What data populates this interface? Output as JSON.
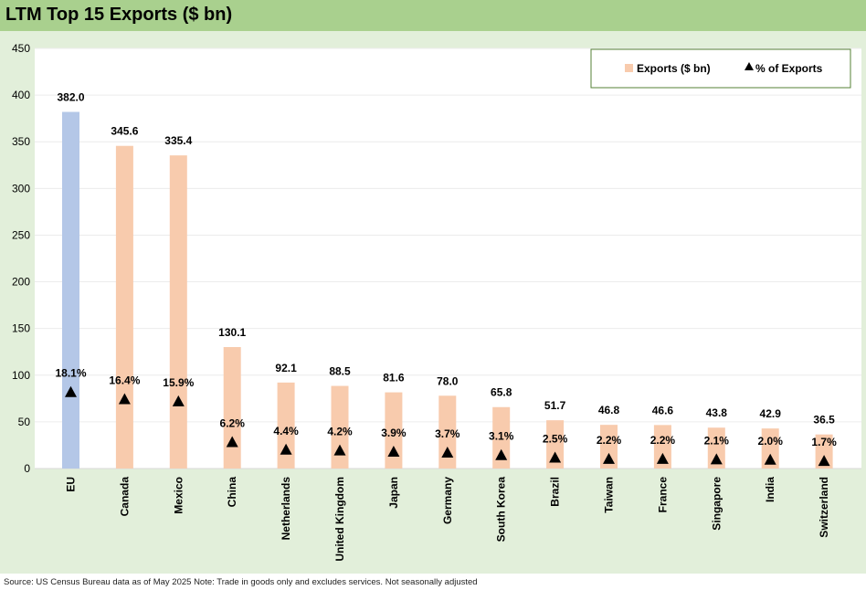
{
  "header": {
    "title": "LTM Top 15 Exports ($ bn)"
  },
  "footer": {
    "source": "Source: US Census Bureau data as of May 2025 Note: Trade in goods only and excludes services. Not seasonally adjusted"
  },
  "colors": {
    "eu_bar": "#b4c7e7",
    "bar": "#f8cbad",
    "marker": "#000000",
    "title_band": "#a9d08e",
    "chart_bg": "#e2efda"
  },
  "chart_data": {
    "type": "bar",
    "title": "LTM Top 15 Exports ($ bn)",
    "xlabel": "",
    "ylabel": "",
    "ylim": [
      0,
      450
    ],
    "yticks": [
      0,
      50,
      100,
      150,
      200,
      250,
      300,
      350,
      400,
      450
    ],
    "categories": [
      "EU",
      "Canada",
      "Mexico",
      "China",
      "Netherlands",
      "United Kingdom",
      "Japan",
      "Germany",
      "South Korea",
      "Brazil",
      "Taiwan",
      "France",
      "Singapore",
      "India",
      "Switzerland"
    ],
    "series": [
      {
        "name": "Exports ($ bn)",
        "kind": "bar",
        "values": [
          382.0,
          345.6,
          335.4,
          130.1,
          92.1,
          88.5,
          81.6,
          78.0,
          65.8,
          51.7,
          46.8,
          46.6,
          43.8,
          42.9,
          36.5
        ],
        "labels": [
          "382.0",
          "345.6",
          "335.4",
          "130.1",
          "92.1",
          "88.5",
          "81.6",
          "78.0",
          "65.8",
          "51.7",
          "46.8",
          "46.6",
          "43.8",
          "42.9",
          "36.5"
        ]
      },
      {
        "name": "% of Exports",
        "kind": "marker",
        "marker": "triangle",
        "values": [
          18.1,
          16.4,
          15.9,
          6.2,
          4.4,
          4.2,
          3.9,
          3.7,
          3.1,
          2.5,
          2.2,
          2.2,
          2.1,
          2.0,
          1.7
        ],
        "labels": [
          "18.1%",
          "16.4%",
          "15.9%",
          "6.2%",
          "4.4%",
          "4.2%",
          "3.9%",
          "3.7%",
          "3.1%",
          "2.5%",
          "2.2%",
          "2.2%",
          "2.1%",
          "2.0%",
          "1.7%"
        ]
      }
    ],
    "legend": [
      "Exports ($ bn)",
      "% of Exports"
    ],
    "legend_position": "top-right"
  }
}
